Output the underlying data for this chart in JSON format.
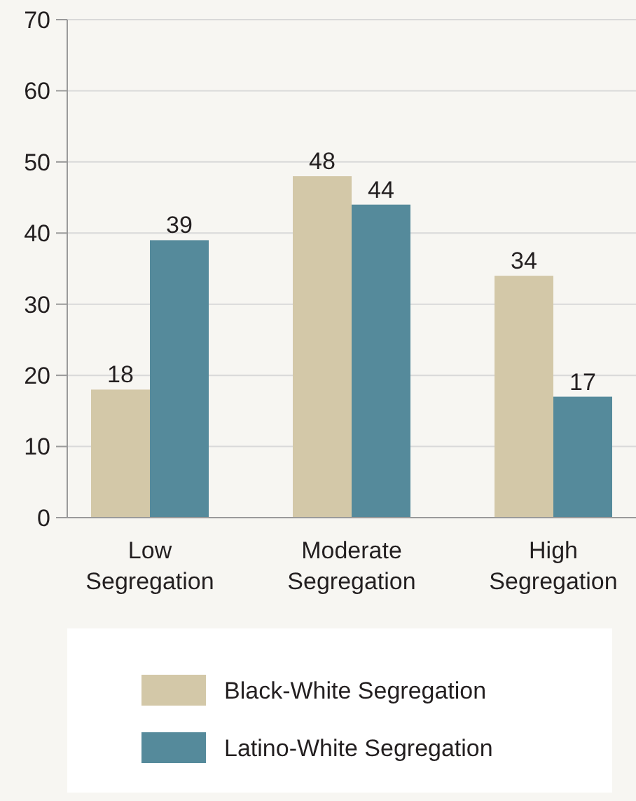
{
  "chart_data": {
    "type": "bar",
    "categories": [
      "Low Segregation",
      "Moderate Segregation",
      "High Segregation"
    ],
    "series": [
      {
        "name": "Black-White Segregation",
        "color": "#d3c8a8",
        "values": [
          18,
          48,
          34
        ]
      },
      {
        "name": "Latino-White Segregation",
        "color": "#558a9b",
        "values": [
          39,
          44,
          17
        ]
      }
    ],
    "ylim": [
      0,
      70
    ],
    "yticks": [
      0,
      10,
      20,
      30,
      40,
      50,
      60,
      70
    ],
    "grid": "y",
    "legend": "bottom",
    "data_labels": true
  }
}
